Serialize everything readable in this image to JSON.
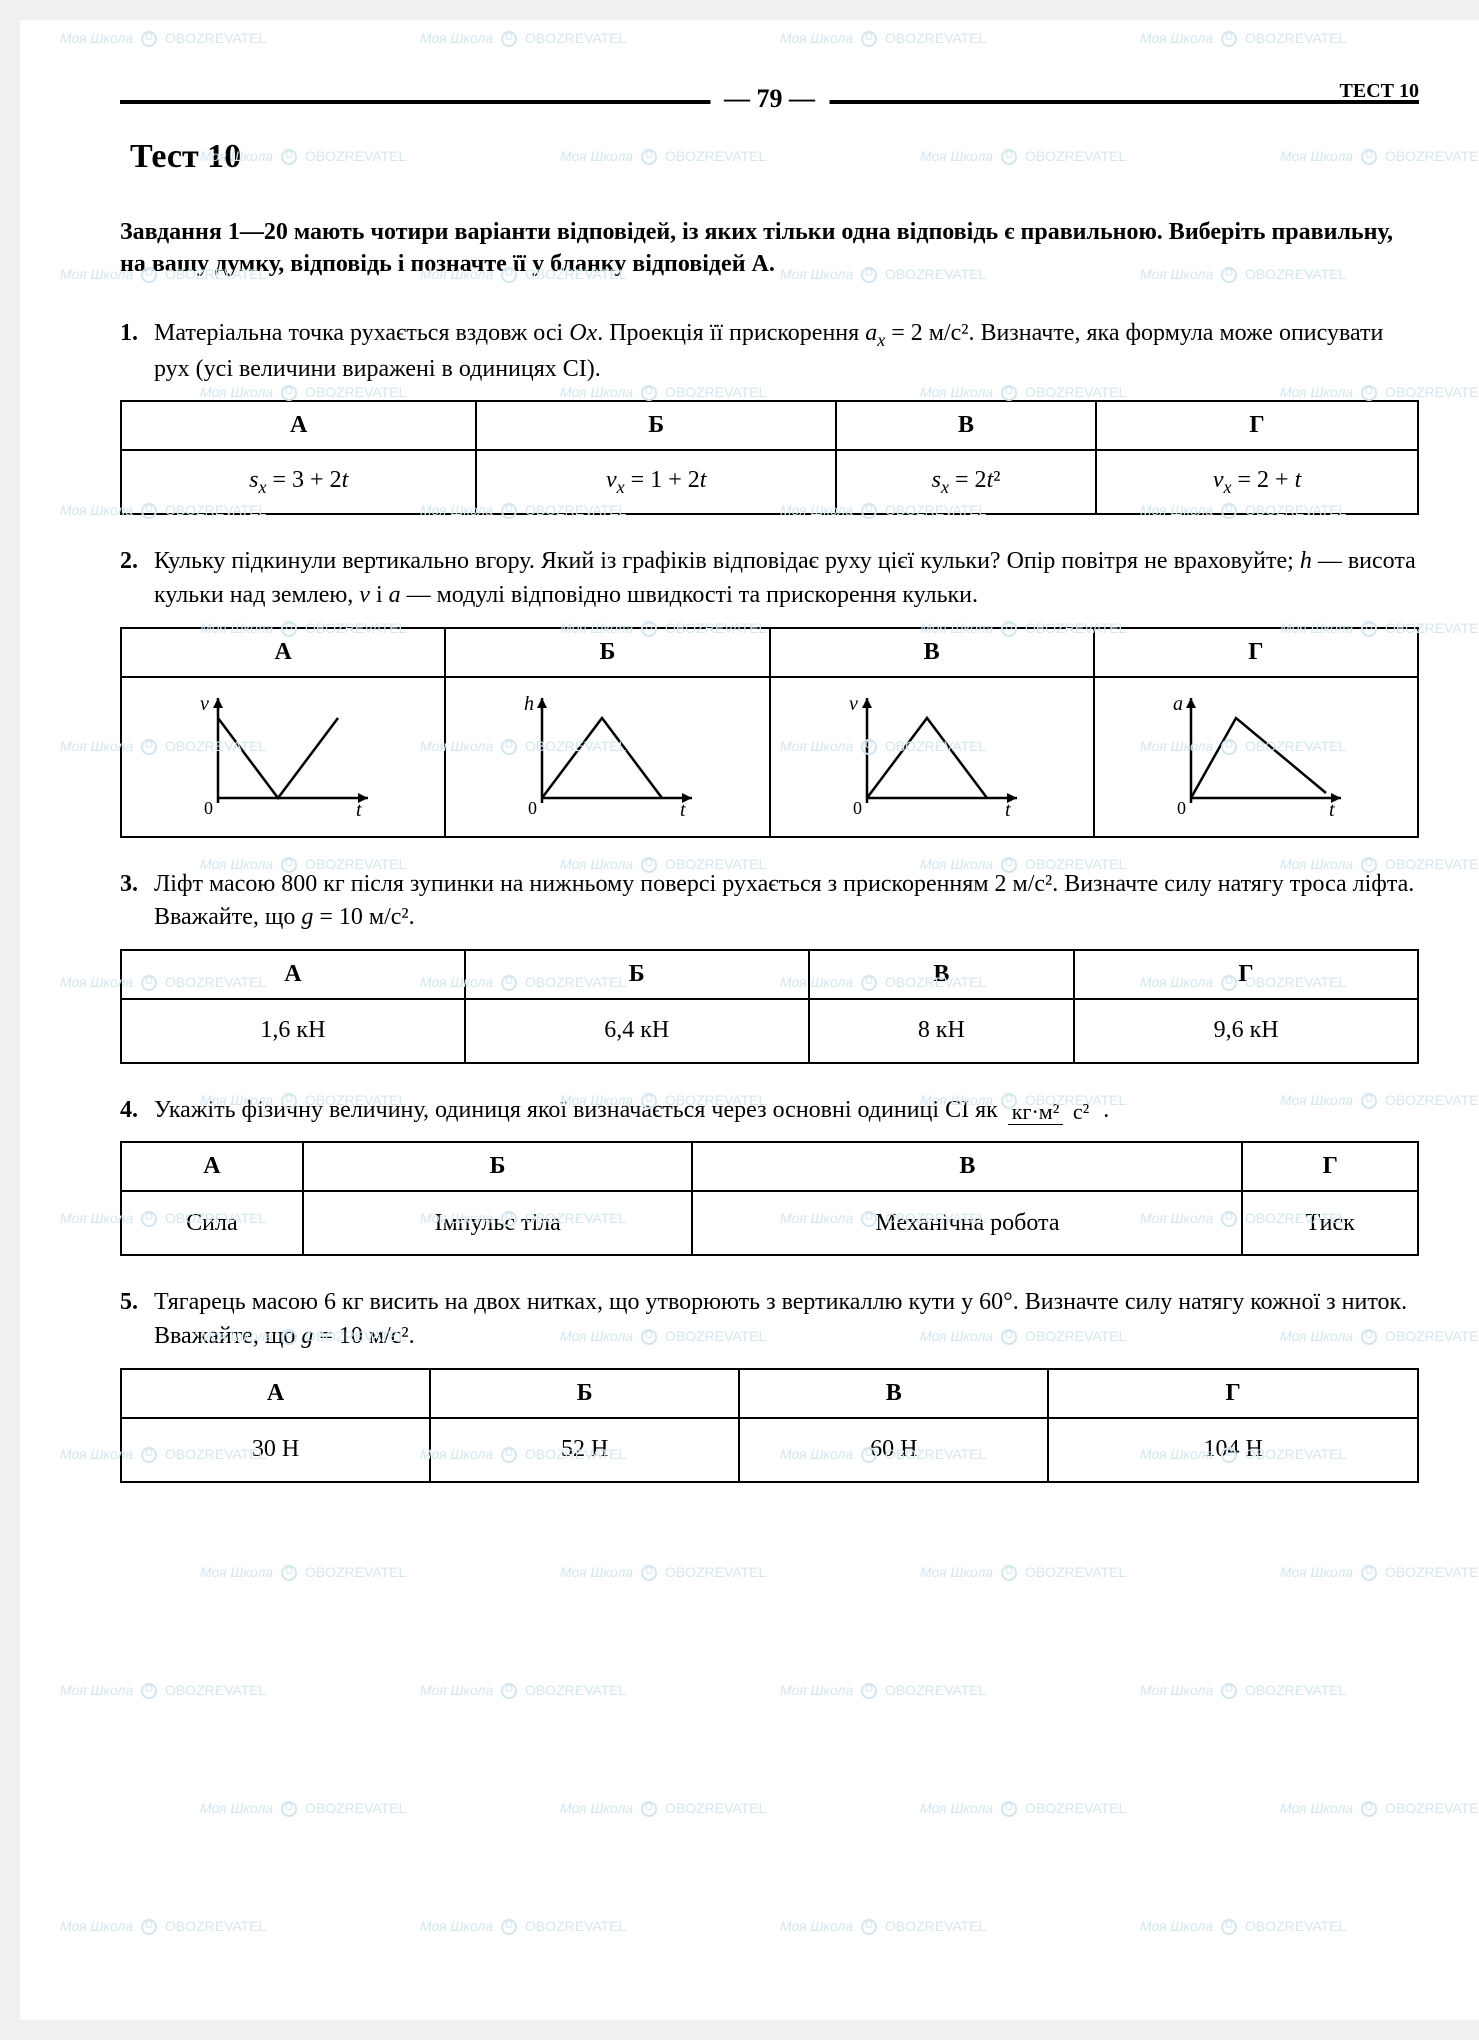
{
  "page_number": "79",
  "corner_label": "ТЕСТ 10",
  "test_title": "Тест 10",
  "instructions": "Завдання 1—20 мають чотири варіанти відповідей, із яких тільки одна відповідь є правильною. Виберіть правильну, на вашу думку, відповідь і позначте її у бланку відповідей А.",
  "headers": [
    "А",
    "Б",
    "В",
    "Г"
  ],
  "watermark_text_1": "Моя Школа",
  "watermark_text_2": "OBOZREVATEL",
  "q1": {
    "num": "1.",
    "text_pre": "Матеріальна точка рухається вздовж осі ",
    "axis": "Ox",
    "text_mid": ". Проекція її прискорення ",
    "accel_sym": "aₓ = 2 м/с²",
    "text_post": ". Визначте, яка формула може описувати рух (усі величини виражені в одиницях СІ).",
    "answers": [
      "sₓ = 3 + 2t",
      "vₓ = 1 + 2t",
      "sₓ = 2t²",
      "vₓ = 2 + t"
    ]
  },
  "q2": {
    "num": "2.",
    "text": "Кульку підкинули вертикально вгору. Який із графіків відповідає руху цієї кульки? Опір повітря не враховуйте; h — висота кульки над землею, v і a — модулі відповідно швидкості та прискорення кульки.",
    "graphs": [
      {
        "ylabel": "v",
        "xlabel": "t",
        "type": "v-shape"
      },
      {
        "ylabel": "h",
        "xlabel": "t",
        "type": "triangle"
      },
      {
        "ylabel": "v",
        "xlabel": "t",
        "type": "triangle"
      },
      {
        "ylabel": "a",
        "xlabel": "t",
        "type": "decay"
      }
    ],
    "graph_style": {
      "stroke": "#000000",
      "stroke_width": 2.5,
      "axis_width": 2.5,
      "font_size": 20,
      "font_style": "italic"
    }
  },
  "q3": {
    "num": "3.",
    "text": "Ліфт масою 800 кг після зупинки на нижньому поверсі рухається з прискоренням 2 м/с². Визначте силу натягу троса ліфта. Вважайте, що g = 10 м/с².",
    "answers": [
      "1,6 кН",
      "6,4 кН",
      "8 кН",
      "9,6 кН"
    ]
  },
  "q4": {
    "num": "4.",
    "text_pre": "Укажіть фізичну величину, одиниця якої визначається через основні одиниці СІ як ",
    "frac_top": "кг·м²",
    "frac_bot": "с²",
    "text_post": " .",
    "answers": [
      "Сила",
      "Імпульс тіла",
      "Механічна робота",
      "Тиск"
    ]
  },
  "q5": {
    "num": "5.",
    "text": "Тягарець масою 6 кг висить на двох нитках, що утворюють з вертикаллю кути у 60°. Визначте силу натягу кожної з ниток. Вважайте, що g = 10 м/с².",
    "answers": [
      "30 Н",
      "52 Н",
      "60 Н",
      "104 Н"
    ]
  }
}
